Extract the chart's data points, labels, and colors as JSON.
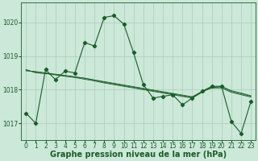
{
  "background_color": "#cce8d8",
  "grid_color": "#aaccbb",
  "line_color": "#1a5c2a",
  "title": "Graphe pression niveau de la mer (hPa)",
  "xlim": [
    -0.5,
    23.5
  ],
  "ylim": [
    1016.5,
    1020.6
  ],
  "yticks": [
    1017,
    1018,
    1019,
    1020
  ],
  "xticks": [
    0,
    1,
    2,
    3,
    4,
    5,
    6,
    7,
    8,
    9,
    10,
    11,
    12,
    13,
    14,
    15,
    16,
    17,
    18,
    19,
    20,
    21,
    22,
    23
  ],
  "series": [
    [
      1017.3,
      1017.0,
      1018.6,
      1018.3,
      1018.55,
      1018.5,
      1019.4,
      1019.3,
      1020.15,
      1020.2,
      1019.95,
      1019.1,
      1018.15,
      1017.75,
      1017.8,
      1017.85,
      1017.55,
      1017.75,
      1017.95,
      1018.1,
      1018.1,
      1017.05,
      1016.7,
      1017.65
    ],
    [
      1018.6,
      1018.5,
      1018.48,
      1018.45,
      1018.42,
      1018.38,
      1018.34,
      1018.28,
      1018.22,
      1018.17,
      1018.12,
      1018.07,
      1018.02,
      1017.97,
      1017.92,
      1017.87,
      1017.82,
      1017.77,
      1017.95,
      1018.05,
      1018.05,
      1017.92,
      1017.85,
      1017.78
    ],
    [
      1018.58,
      1018.52,
      1018.48,
      1018.44,
      1018.4,
      1018.36,
      1018.31,
      1018.26,
      1018.2,
      1018.15,
      1018.1,
      1018.05,
      1018.0,
      1017.95,
      1017.9,
      1017.85,
      1017.8,
      1017.75,
      1017.92,
      1018.08,
      1018.08,
      1017.95,
      1017.88,
      1017.8
    ],
    [
      1018.56,
      1018.54,
      1018.5,
      1018.46,
      1018.42,
      1018.38,
      1018.34,
      1018.29,
      1018.24,
      1018.19,
      1018.14,
      1018.09,
      1018.04,
      1017.99,
      1017.94,
      1017.89,
      1017.84,
      1017.79,
      1017.94,
      1018.06,
      1018.1,
      1017.97,
      1017.9,
      1017.82
    ]
  ],
  "title_fontsize": 7,
  "tick_fontsize": 5.5
}
